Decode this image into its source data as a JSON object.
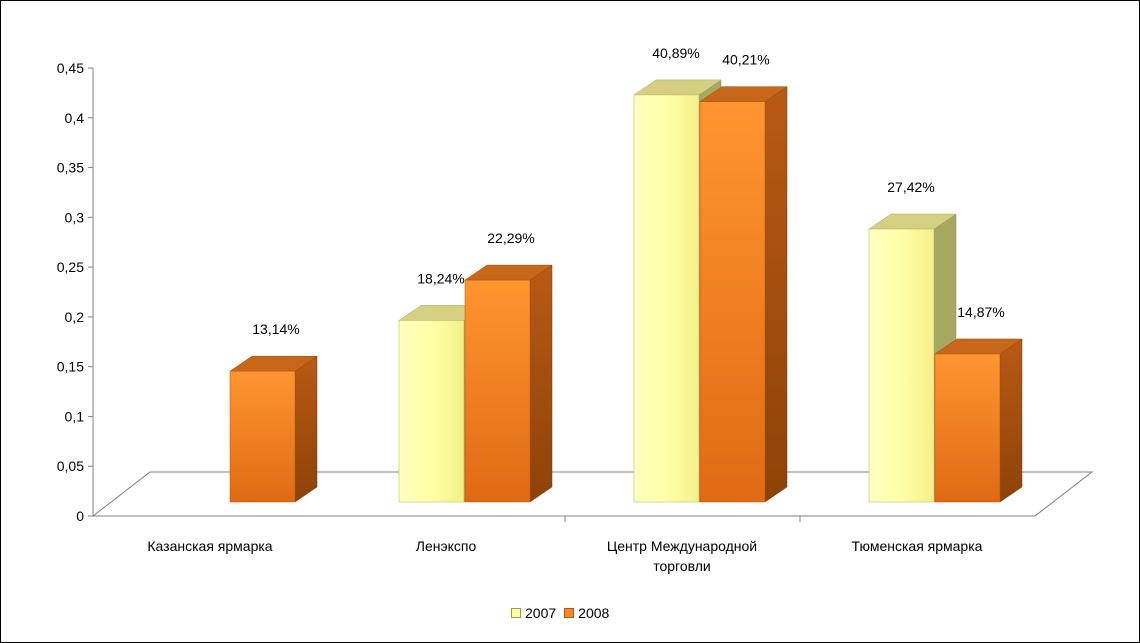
{
  "chart_data": {
    "type": "bar",
    "categories": [
      [
        "Казанская ярмарка"
      ],
      [
        "Ленэкспо"
      ],
      [
        "Центр Международной",
        "торговли"
      ],
      [
        "Тюменская ярмарка"
      ]
    ],
    "series": [
      {
        "name": "2007",
        "values": [
          null,
          0.1824,
          0.4089,
          0.2742
        ],
        "labels": [
          "",
          "18,24%",
          "40,89%",
          "27,42%"
        ],
        "color": "#ffff99"
      },
      {
        "name": "2008",
        "values": [
          0.1314,
          0.2229,
          0.4021,
          0.1487
        ],
        "labels": [
          "13,14%",
          "22,29%",
          "40,21%",
          "14,87%"
        ],
        "color": "#f7862a"
      }
    ],
    "yticks": [
      "0",
      "0,05",
      "0,1",
      "0,15",
      "0,2",
      "0,25",
      "0,3",
      "0,35",
      "0,4",
      "0,45"
    ],
    "ylim": [
      0,
      0.45
    ],
    "legend_position": "bottom"
  }
}
